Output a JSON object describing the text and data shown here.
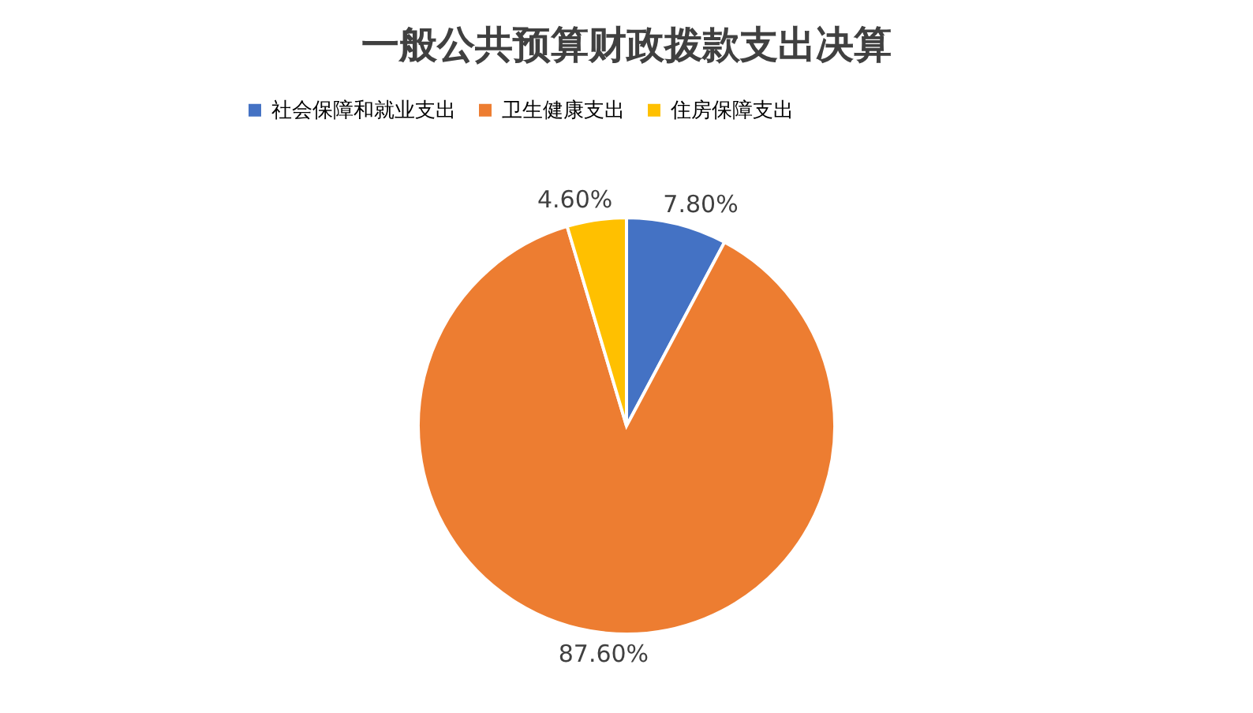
{
  "chart_data": {
    "type": "pie",
    "title": "一般公共预算财政拨款支出决算",
    "categories": [
      "社会保障和就业支出",
      "卫生健康支出",
      "住房保障支出"
    ],
    "values": [
      7.8,
      87.6,
      4.6
    ],
    "colors": [
      "#4472c4",
      "#ed7d31",
      "#ffc000"
    ],
    "value_labels": [
      "7.80%",
      "87.60%",
      "4.60%"
    ],
    "legend": "top"
  }
}
